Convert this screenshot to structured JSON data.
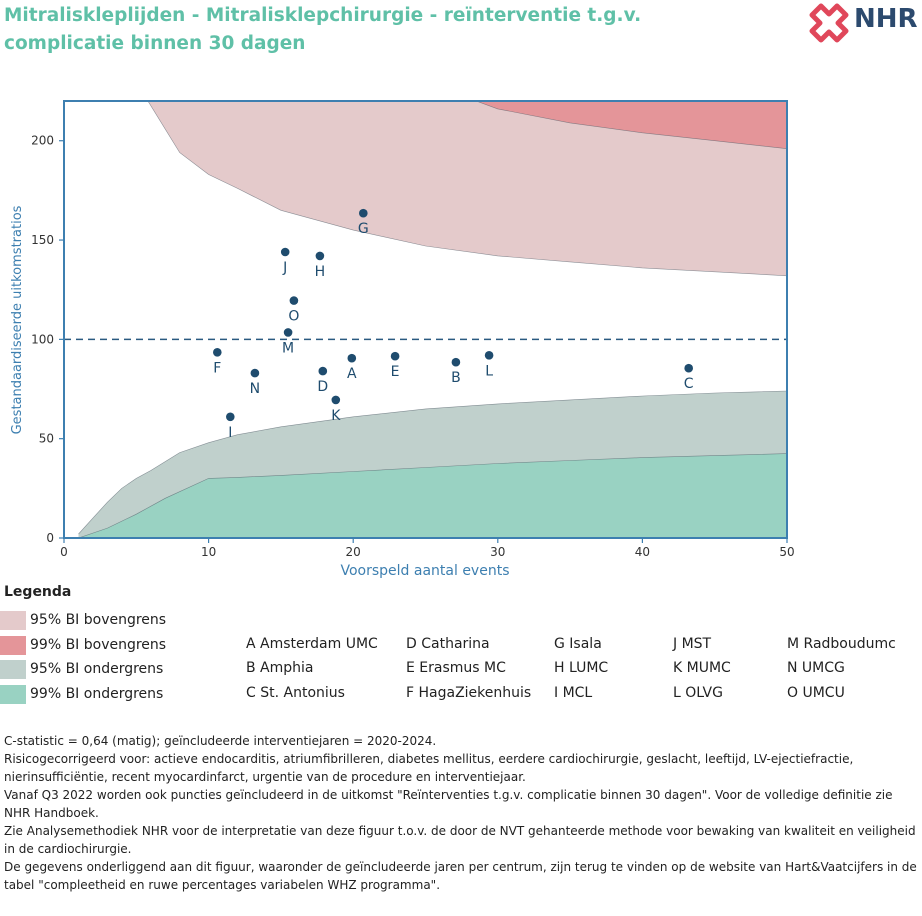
{
  "title": "Mitraliskleplijden - Mitralisklepchirurgie - reïnterventie t.g.v. complicatie binnen 30 dagen",
  "logo": {
    "text": "NHR",
    "icon": "nhr-cross-logo-icon",
    "color_icon": "#e0475a",
    "color_text": "#2c4a6e"
  },
  "chart_data": {
    "type": "scatter",
    "xlabel": "Voorspeld aantal events",
    "ylabel": "Gestandaardiseerde uitkomstratios",
    "xlim": [
      0,
      50
    ],
    "ylim": [
      0,
      220
    ],
    "xticks": [
      0,
      10,
      20,
      30,
      40,
      50
    ],
    "yticks": [
      0,
      50,
      100,
      150,
      200
    ],
    "reference_line": 100,
    "points": [
      {
        "label": "A",
        "x": 19.9,
        "y": 90.5
      },
      {
        "label": "B",
        "x": 27.1,
        "y": 88.5
      },
      {
        "label": "C",
        "x": 43.2,
        "y": 85.5
      },
      {
        "label": "D",
        "x": 17.9,
        "y": 84
      },
      {
        "label": "E",
        "x": 22.9,
        "y": 91.5
      },
      {
        "label": "F",
        "x": 10.6,
        "y": 93.5
      },
      {
        "label": "G",
        "x": 20.7,
        "y": 163.5
      },
      {
        "label": "H",
        "x": 17.7,
        "y": 142
      },
      {
        "label": "I",
        "x": 11.5,
        "y": 61
      },
      {
        "label": "J",
        "x": 15.3,
        "y": 144
      },
      {
        "label": "K",
        "x": 18.8,
        "y": 69.5
      },
      {
        "label": "L",
        "x": 29.4,
        "y": 92
      },
      {
        "label": "M",
        "x": 15.5,
        "y": 103.5
      },
      {
        "label": "N",
        "x": 13.2,
        "y": 83
      },
      {
        "label": "O",
        "x": 15.9,
        "y": 119.5
      }
    ],
    "bands": {
      "upper95": {
        "x": [
          5.8,
          8,
          10,
          12,
          15,
          20,
          25,
          30,
          35,
          40,
          45,
          50
        ],
        "y": [
          220,
          194,
          183,
          176,
          165,
          155,
          147,
          142,
          139,
          136,
          134,
          132
        ]
      },
      "upper99": {
        "x": [
          28.5,
          30,
          35,
          40,
          45,
          50
        ],
        "y": [
          220,
          216,
          209,
          204,
          200,
          196
        ]
      },
      "lower95": {
        "x": [
          1,
          2,
          3,
          4,
          5,
          6,
          8,
          10,
          12,
          15,
          20,
          25,
          30,
          35,
          40,
          45,
          50
        ],
        "y": [
          2,
          10,
          18,
          25,
          30,
          34,
          43,
          48,
          52,
          56,
          61,
          65,
          67.5,
          69.5,
          71.5,
          73,
          74
        ]
      },
      "lower99": {
        "x": [
          1,
          3,
          5,
          7,
          10,
          12,
          15,
          20,
          25,
          30,
          35,
          40,
          45,
          50
        ],
        "y": [
          0,
          5,
          12,
          20,
          30,
          30.5,
          31.5,
          33.5,
          35.5,
          37.5,
          39,
          40.5,
          41.5,
          42.5
        ]
      }
    },
    "colors": {
      "upper95": "#e4cacb",
      "upper99": "#e49599",
      "lower95": "#c0d0cc",
      "lower99": "#99d2c2",
      "points": "#1f4c6e",
      "axis": "#3d7fb0",
      "reference": "#2a5a80"
    }
  },
  "legend": {
    "title": "Legenda",
    "items": [
      {
        "label": "95% BI bovengrens",
        "color": "#e4cacb"
      },
      {
        "label": "99% BI bovengrens",
        "color": "#e49599"
      },
      {
        "label": "95% BI ondergrens",
        "color": "#c0d0cc"
      },
      {
        "label": "99% BI ondergrens",
        "color": "#99d2c2"
      }
    ]
  },
  "centres": [
    [
      "A Amsterdam UMC",
      "B Amphia",
      "C St. Antonius"
    ],
    [
      "D Catharina",
      "E Erasmus MC",
      "F HagaZiekenhuis"
    ],
    [
      "G Isala",
      "H LUMC",
      "I MCL"
    ],
    [
      "J MST",
      "K MUMC",
      "L OLVG"
    ],
    [
      "M Radboudumc",
      "N UMCG",
      "O UMCU"
    ]
  ],
  "notes": [
    "C-statistic =  0,64 (matig); geïncludeerde interventiejaren = 2020-2024.",
    "Risicogecorrigeerd voor: actieve endocarditis, atriumfibrilleren, diabetes mellitus, eerdere cardiochirurgie, geslacht, leeftijd, LV-ejectiefractie, nierinsufficiëntie, recent myocardinfarct, urgentie van de procedure en interventiejaar.",
    "Vanaf Q3 2022 worden ook puncties geïncludeerd in de uitkomst \"Reïnterventies t.g.v. complicatie binnen 30 dagen\". Voor de volledige definitie zie NHR Handboek.",
    "Zie Analysemethodiek NHR voor de interpretatie van deze figuur t.o.v. de door de NVT gehanteerde methode voor bewaking van kwaliteit en veiligheid in de cardiochirurgie.",
    "De gegevens onderliggend aan dit figuur, waaronder de geïncludeerde jaren per centrum, zijn terug te vinden op de website van Hart&Vaatcijfers in de tabel \"compleetheid en ruwe percentages variabelen WHZ programma\"."
  ]
}
